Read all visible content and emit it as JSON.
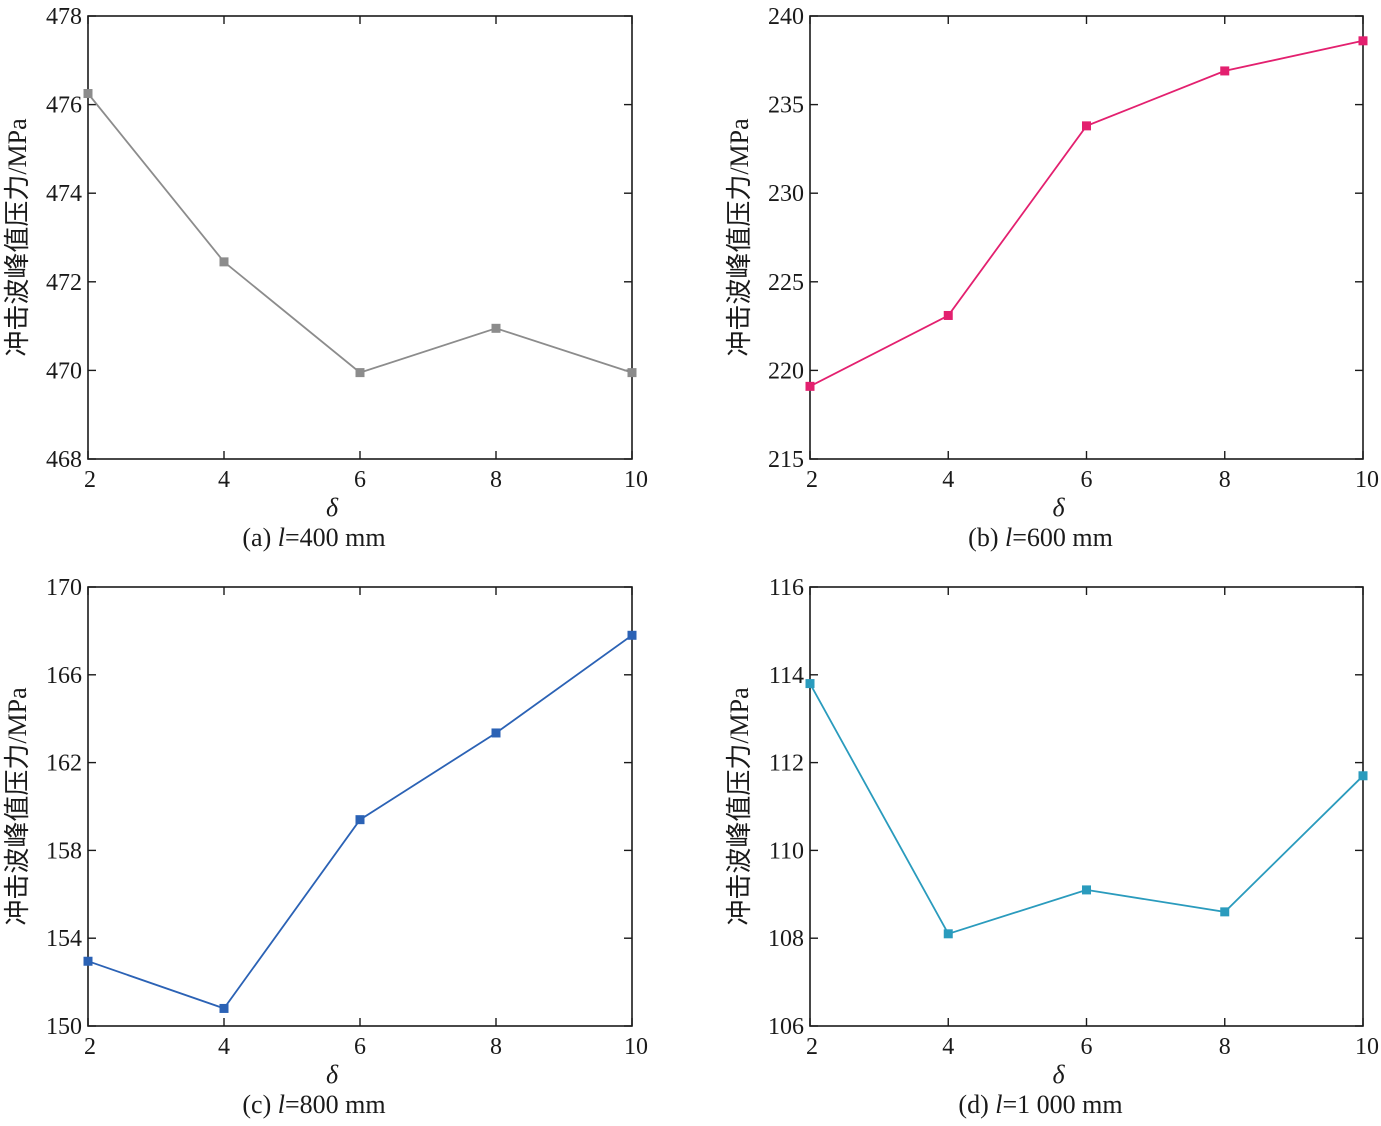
{
  "chart_data": [
    {
      "type": "line",
      "caption_label": "(a) ",
      "caption_var": "l",
      "caption_value": "=400 mm",
      "xlabel": "δ",
      "ylabel": "冲击波峰值压力/MPa",
      "xlim": [
        2,
        10
      ],
      "ylim": [
        468,
        478
      ],
      "xticks": [
        2,
        4,
        6,
        8,
        10
      ],
      "yticks": [
        468,
        470,
        472,
        474,
        476,
        478
      ],
      "grid": false,
      "color": "#8c8c8c",
      "series": [
        {
          "x": [
            2,
            4,
            6,
            8,
            10
          ],
          "y": [
            476.25,
            472.45,
            469.95,
            470.95,
            469.95
          ]
        }
      ]
    },
    {
      "type": "line",
      "caption_label": "(b) ",
      "caption_var": "l",
      "caption_value": "=600 mm",
      "xlabel": "δ",
      "ylabel": "冲击波峰值压力/MPa",
      "xlim": [
        2,
        10
      ],
      "ylim": [
        215,
        240
      ],
      "xticks": [
        2,
        4,
        6,
        8,
        10
      ],
      "yticks": [
        215,
        220,
        225,
        230,
        235,
        240
      ],
      "grid": false,
      "color": "#e3206f",
      "series": [
        {
          "x": [
            2,
            4,
            6,
            8,
            10
          ],
          "y": [
            219.1,
            223.1,
            233.8,
            236.9,
            238.6
          ]
        }
      ]
    },
    {
      "type": "line",
      "caption_label": "(c) ",
      "caption_var": "l",
      "caption_value": "=800 mm",
      "xlabel": "δ",
      "ylabel": "冲击波峰值压力/MPa",
      "xlim": [
        2,
        10
      ],
      "ylim": [
        150,
        170
      ],
      "xticks": [
        2,
        4,
        6,
        8,
        10
      ],
      "yticks": [
        150,
        154,
        158,
        162,
        166,
        170
      ],
      "grid": false,
      "color": "#2b62b5",
      "series": [
        {
          "x": [
            2,
            4,
            6,
            8,
            10
          ],
          "y": [
            152.95,
            150.8,
            159.4,
            163.35,
            167.8
          ]
        }
      ]
    },
    {
      "type": "line",
      "caption_label": "(d) ",
      "caption_var": "l",
      "caption_value": "=1 000 mm",
      "xlabel": "δ",
      "ylabel": "冲击波峰值压力/MPa",
      "xlim": [
        2,
        10
      ],
      "ylim": [
        106,
        116
      ],
      "xticks": [
        2,
        4,
        6,
        8,
        10
      ],
      "yticks": [
        106,
        108,
        110,
        112,
        114,
        116
      ],
      "grid": false,
      "color": "#2a9bbd",
      "series": [
        {
          "x": [
            2,
            4,
            6,
            8,
            10
          ],
          "y": [
            113.8,
            108.1,
            109.1,
            108.6,
            111.7
          ]
        }
      ]
    }
  ]
}
